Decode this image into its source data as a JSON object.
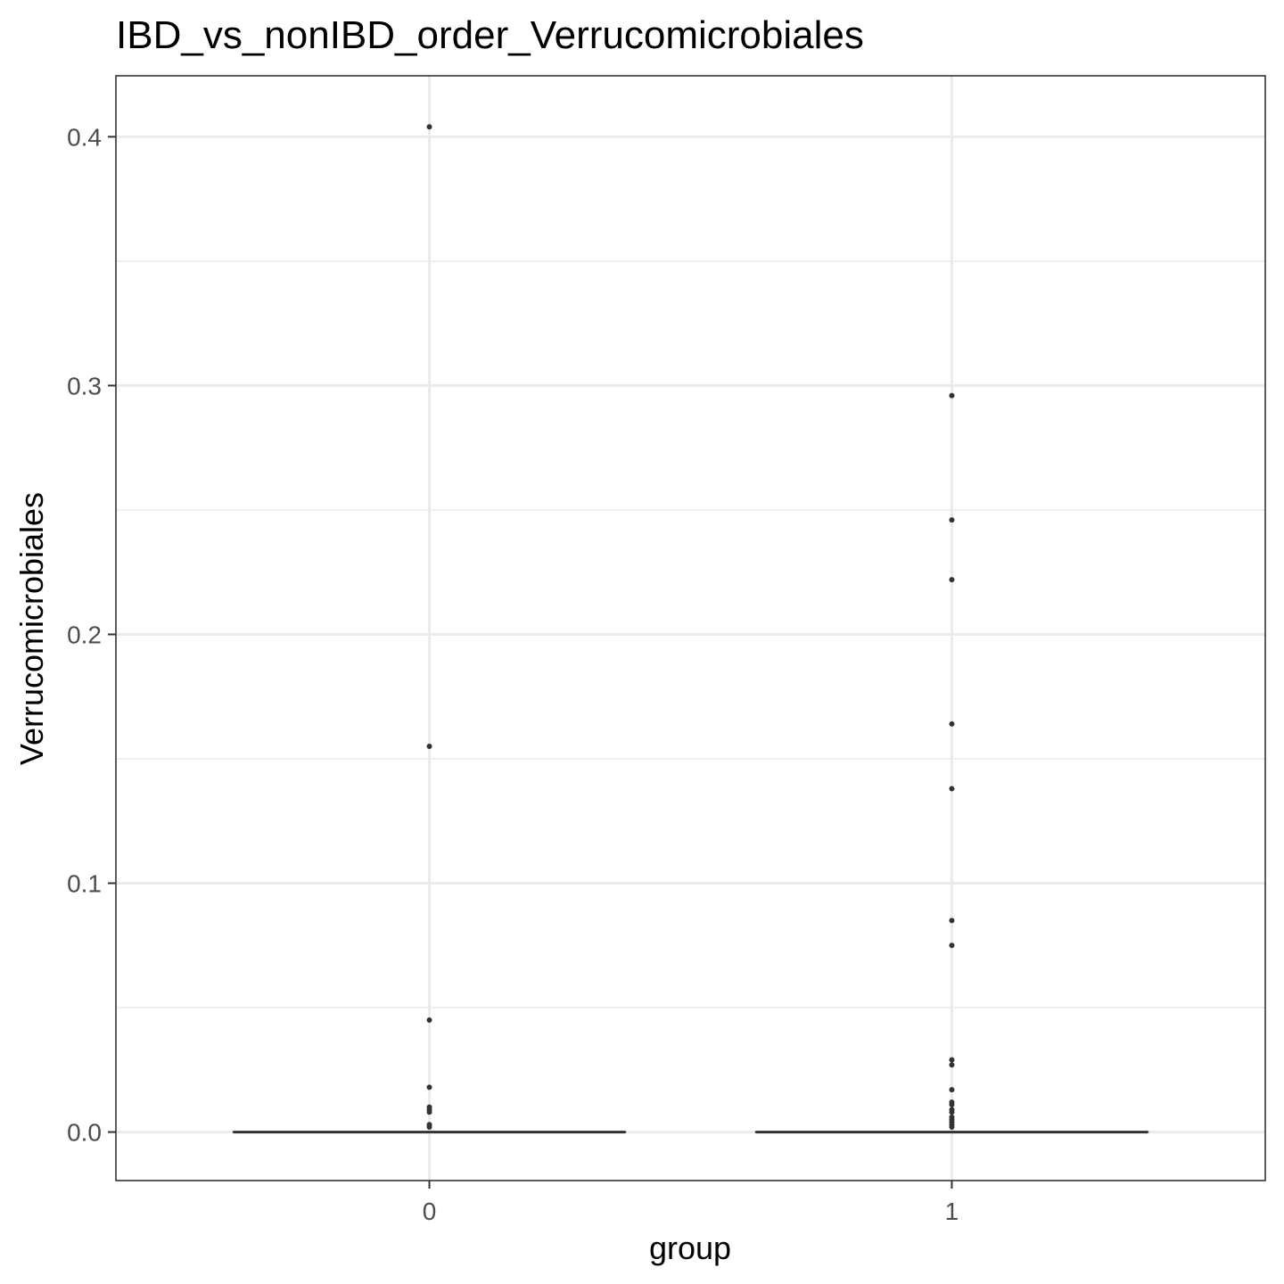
{
  "chart_data": {
    "type": "box",
    "title": "IBD_vs_nonIBD_order_Verrucomicrobiales",
    "xlabel": "group",
    "ylabel": "Verrucomicrobiales",
    "categories": [
      "0",
      "1"
    ],
    "ylim": [
      -0.0195,
      0.4245
    ],
    "yticks": [
      0.0,
      0.1,
      0.2,
      0.3,
      0.4
    ],
    "ytick_labels": [
      "0.0",
      "0.1",
      "0.2",
      "0.3",
      "0.4"
    ],
    "minor_yticks": [
      0.05,
      0.15,
      0.25,
      0.35
    ],
    "grid": true,
    "boxes": [
      {
        "category": "0",
        "q1": 0.0,
        "median": 0.0,
        "q3": 0.0,
        "whisker_low": 0.0,
        "whisker_high": 0.0,
        "outliers": [
          0.404,
          0.155,
          0.045,
          0.018,
          0.01,
          0.009,
          0.008,
          0.003,
          0.002
        ]
      },
      {
        "category": "1",
        "q1": 0.0,
        "median": 0.0,
        "q3": 0.0,
        "whisker_low": 0.0,
        "whisker_high": 0.0,
        "outliers": [
          0.296,
          0.246,
          0.222,
          0.164,
          0.138,
          0.085,
          0.075,
          0.029,
          0.027,
          0.017,
          0.012,
          0.011,
          0.009,
          0.008,
          0.006,
          0.005,
          0.004,
          0.003,
          0.002
        ]
      }
    ]
  },
  "colors": {
    "panel_border": "#333333",
    "grid": "#ebebeb",
    "tick_label": "#4d4d4d",
    "box": "#333333",
    "background": "#ffffff"
  }
}
